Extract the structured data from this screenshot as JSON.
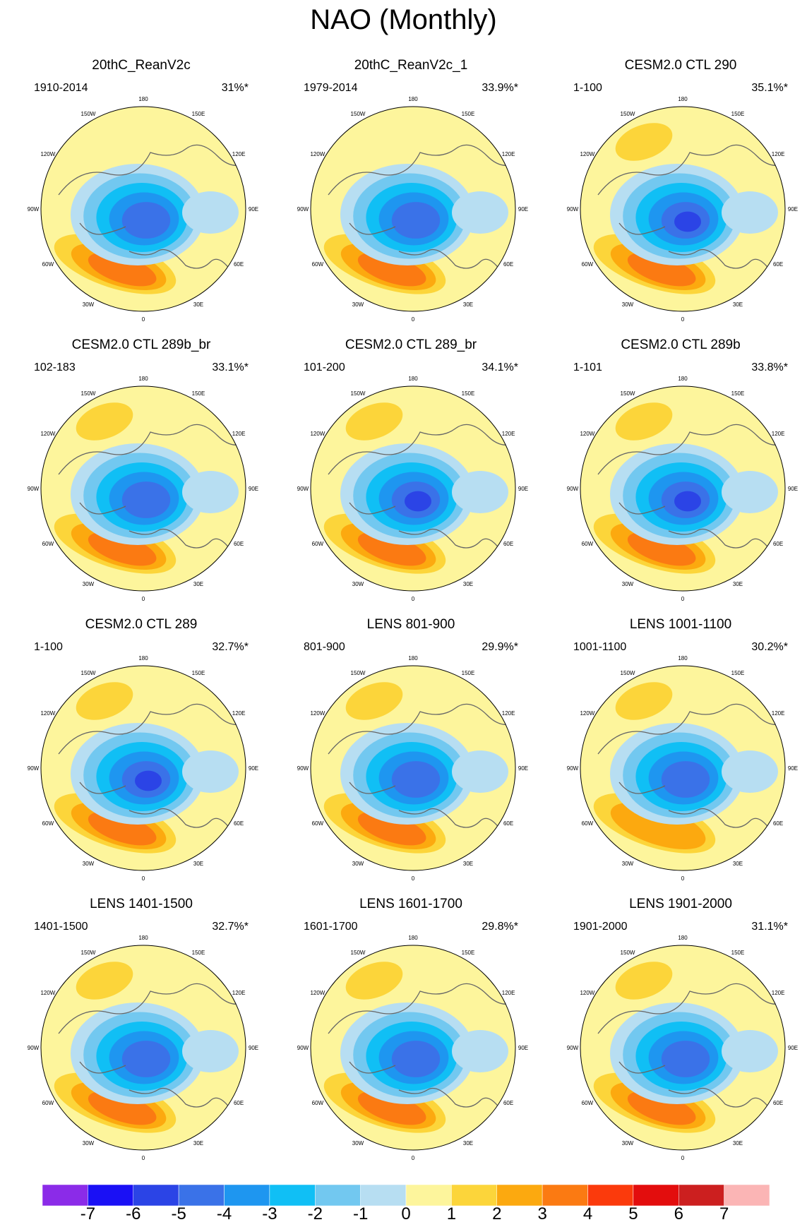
{
  "title": "NAO (Monthly)",
  "panels": [
    {
      "title": "20thC_ReanV2c",
      "period": "1910-2014",
      "variance": "31%*",
      "neg": 5,
      "pos": 4
    },
    {
      "title": "20thC_ReanV2c_1",
      "period": "1979-2014",
      "variance": "33.9%*",
      "neg": 5,
      "pos": 4
    },
    {
      "title": "CESM2.0 CTL 290",
      "period": "1-100",
      "variance": "35.1%*",
      "neg": 6,
      "pos": 3
    },
    {
      "title": "CESM2.0 CTL 289b_br",
      "period": "102-183",
      "variance": "33.1%*",
      "neg": 5,
      "pos": 4
    },
    {
      "title": "CESM2.0 CTL 289_br",
      "period": "101-200",
      "variance": "34.1%*",
      "neg": 6,
      "pos": 3
    },
    {
      "title": "CESM2.0 CTL 289b",
      "period": "1-101",
      "variance": "33.8%*",
      "neg": 6,
      "pos": 3
    },
    {
      "title": "CESM2.0 CTL 289",
      "period": "1-100",
      "variance": "32.7%*",
      "neg": 6,
      "pos": 3
    },
    {
      "title": "LENS 801-900",
      "period": "801-900",
      "variance": "29.9%*",
      "neg": 5,
      "pos": 3
    },
    {
      "title": "LENS 1001-1100",
      "period": "1001-1100",
      "variance": "30.2%*",
      "neg": 5,
      "pos": 2
    },
    {
      "title": "LENS 1401-1500",
      "period": "1401-1500",
      "variance": "32.7%*",
      "neg": 5,
      "pos": 3
    },
    {
      "title": "LENS 1601-1700",
      "period": "1601-1700",
      "variance": "29.8%*",
      "neg": 5,
      "pos": 3
    },
    {
      "title": "LENS 1901-2000",
      "period": "1901-2000",
      "variance": "31.1%*",
      "neg": 5,
      "pos": 3
    }
  ],
  "longitude_labels": [
    "180",
    "150E",
    "120E",
    "90E",
    "60E",
    "30E",
    "0",
    "30W",
    "60W",
    "90W",
    "120W",
    "150W"
  ],
  "colorbar": {
    "labels": [
      "-7",
      "-6",
      "-5",
      "-4",
      "-3",
      "-2",
      "-1",
      "0",
      "1",
      "2",
      "3",
      "4",
      "5",
      "6",
      "7"
    ],
    "colors": [
      "#8b2be8",
      "#1a10f5",
      "#2b44e6",
      "#3a72e8",
      "#1e96f0",
      "#10bff5",
      "#72c8f0",
      "#b7def2",
      "#fdf59c",
      "#fcd53a",
      "#fca90f",
      "#fb7a12",
      "#fb3a0c",
      "#e30d0d",
      "#cc1f1f",
      "#fbb5b5"
    ]
  }
}
